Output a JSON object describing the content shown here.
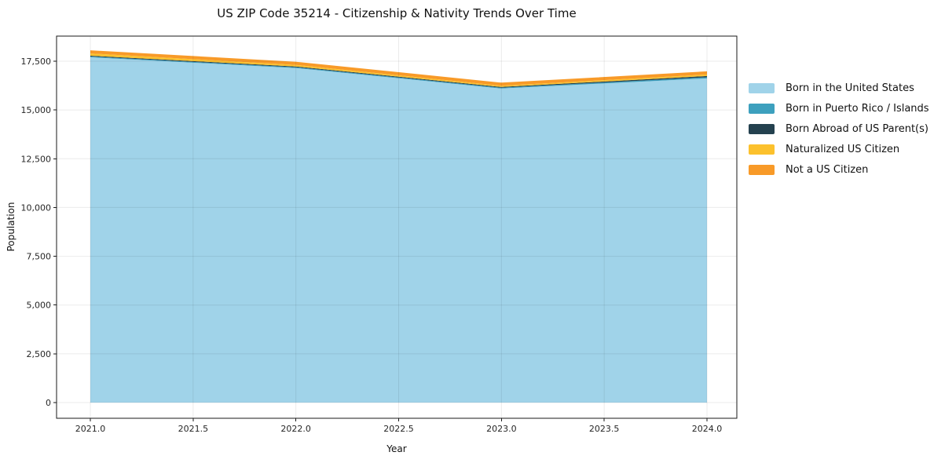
{
  "figure": {
    "background": "#ffffff",
    "spine_color": "#1a1a1a",
    "grid_color": "rgba(0,0,0,0.08)"
  },
  "chart_data": {
    "type": "area",
    "stacked": true,
    "title": "US ZIP Code 35214 - Citizenship & Nativity Trends Over Time",
    "xlabel": "Year",
    "ylabel": "Population",
    "x": [
      2021,
      2022,
      2023,
      2024
    ],
    "series": [
      {
        "name": "Born in the United States",
        "color": "#a0d3e9",
        "values": [
          17700,
          17150,
          16100,
          16620
        ]
      },
      {
        "name": "Born in Puerto Rico / Islands",
        "color": "#3da0be",
        "values": [
          40,
          40,
          40,
          60
        ]
      },
      {
        "name": "Born Abroad of US Parent(s)",
        "color": "#24414f",
        "values": [
          40,
          40,
          40,
          60
        ]
      },
      {
        "name": "Naturalized US Citizen",
        "color": "#fcc12d",
        "values": [
          120,
          80,
          60,
          80
        ]
      },
      {
        "name": "Not a US Citizen",
        "color": "#f89a28",
        "values": [
          160,
          160,
          160,
          160
        ]
      }
    ],
    "totals": [
      18060,
      17470,
      16400,
      16980
    ],
    "x_tick_labels": [
      "2021.0",
      "2021.5",
      "2022.0",
      "2022.5",
      "2023.0",
      "2023.5",
      "2024.0"
    ],
    "y_tick_labels": [
      "0",
      "2,500",
      "5,000",
      "7,500",
      "10,000",
      "12,500",
      "15,000",
      "17,500"
    ],
    "ylim": [
      0,
      18800
    ],
    "xlim": [
      2020.84,
      2024.15
    ],
    "grid": true,
    "legend_position": "right of plot, no frame"
  }
}
